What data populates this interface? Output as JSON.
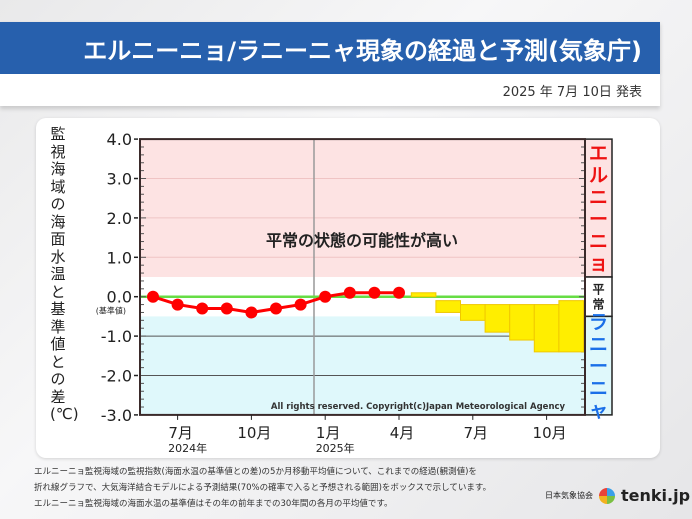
{
  "header": {
    "title": "エルニーニョ/ラニーニャ現象の経過と予測(気象庁)",
    "date": "2025 年 7月 10日 発表"
  },
  "colors": {
    "title_bg": "#2760ad",
    "el_nino_bg": "#fde3e3",
    "normal_bg": "#ffffff",
    "la_nina_bg": "#dff8fb",
    "observed": "#ff0000",
    "forecast_box": "#ffee00",
    "baseline": "#66dd44",
    "el_nino_text": "#ee1111",
    "la_nina_text": "#1a6fe8"
  },
  "chart_data": {
    "type": "line",
    "ylabel": "監視海域の海面水温と基準値との差(℃)",
    "ylim": [
      -3.0,
      4.0
    ],
    "yticks": [
      "4.0",
      "3.0",
      "2.0",
      "1.0",
      "0.0",
      "-1.0",
      "-2.0",
      "-3.0"
    ],
    "baseline_label": "(基準値)",
    "xticks": [
      {
        "label": "7月",
        "month": "2024-07"
      },
      {
        "label": "10月",
        "month": "2024-10"
      },
      {
        "label": "1月",
        "month": "2025-01"
      },
      {
        "label": "4月",
        "month": "2025-04"
      },
      {
        "label": "7月",
        "month": "2025-07"
      },
      {
        "label": "10月",
        "month": "2025-10"
      }
    ],
    "year_labels": [
      {
        "label": "2024年",
        "month": "2024-07"
      },
      {
        "label": "2025年",
        "month": "2025-01"
      }
    ],
    "observed": {
      "months": [
        "2024-06",
        "2024-07",
        "2024-08",
        "2024-09",
        "2024-10",
        "2024-11",
        "2024-12",
        "2025-01",
        "2025-02",
        "2025-03",
        "2025-04"
      ],
      "values": [
        0.0,
        -0.2,
        -0.3,
        -0.3,
        -0.4,
        -0.3,
        -0.2,
        0.0,
        0.1,
        0.1,
        0.1
      ]
    },
    "forecast": {
      "months": [
        "2025-05",
        "2025-06",
        "2025-07",
        "2025-08",
        "2025-09",
        "2025-10",
        "2025-11"
      ],
      "upper": [
        0.1,
        -0.1,
        -0.2,
        -0.2,
        -0.2,
        -0.2,
        -0.1
      ],
      "lower": [
        0.0,
        -0.4,
        -0.6,
        -0.9,
        -1.1,
        -1.4,
        -1.4
      ]
    },
    "regions": [
      {
        "label": "エルニーニョ",
        "from": 0.5,
        "to": 4.0
      },
      {
        "label": "平常",
        "from": -0.5,
        "to": 0.5
      },
      {
        "label": "ラニーニャ",
        "from": -3.0,
        "to": -0.5
      }
    ],
    "annotation": "平常の状態の可能性が高い",
    "copyright": "All rights reserved. Copyright(c)Japan Meteorological Agency"
  },
  "notes": [
    "エルニーニョ監視海域の監視指数(海面水温の基準値との差)の5か月移動平均値について、これまでの経過(観測値)を",
    "折れ線グラフで、大気海洋結合モデルによる予測結果(70%の確率で入ると予想される範囲)をボックスで示しています。",
    "エルニーニョ監視海域の海面水温の基準値はその年の前年までの30年間の各月の平均値です。"
  ],
  "credit": {
    "org": "日本気象協会",
    "brand": "tenki.jp"
  }
}
